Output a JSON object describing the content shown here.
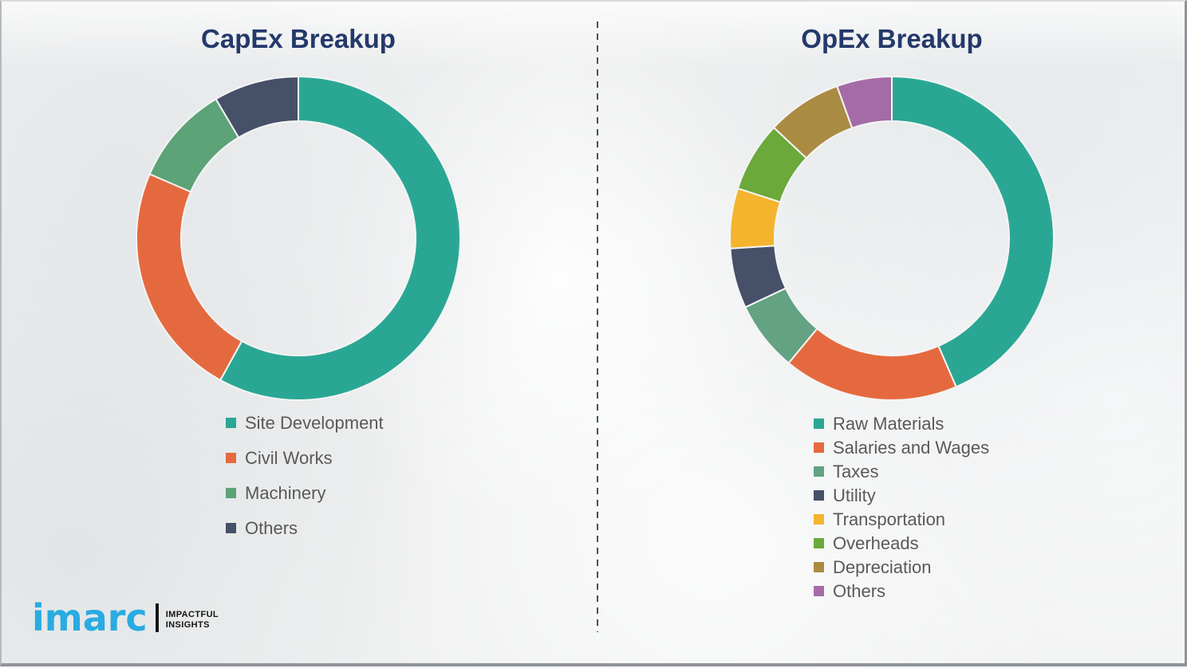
{
  "page": {
    "background_color": "#f0f1f1",
    "title_color": "#24396b",
    "legend_text_color": "#595959",
    "divider_color": "#4f4f4f"
  },
  "chart_data": [
    {
      "type": "pie",
      "subtype": "donut",
      "title": "CapEx Breakup",
      "categories": [
        "Site Development",
        "Civil Works",
        "Machinery",
        "Others"
      ],
      "values": [
        58,
        23.5,
        10,
        8.5
      ],
      "unit": "percent-estimated",
      "colors": [
        "#2aa794",
        "#e5693f",
        "#5ca377",
        "#475069"
      ],
      "start_angle_deg": 0,
      "direction": "clockwise",
      "legend_position": "below-left"
    },
    {
      "type": "pie",
      "subtype": "donut",
      "title": "OpEx Breakup",
      "categories": [
        "Raw Materials",
        "Salaries and Wages",
        "Taxes",
        "Utility",
        "Transportation",
        "Overheads",
        "Depreciation",
        "Others"
      ],
      "values": [
        43.5,
        17.5,
        7,
        6,
        6,
        7,
        7.5,
        5.5
      ],
      "unit": "percent-estimated",
      "colors": [
        "#2aa794",
        "#e5693f",
        "#63a282",
        "#475069",
        "#f5b42e",
        "#6aa93a",
        "#aa8b42",
        "#a56ba7"
      ],
      "start_angle_deg": 0,
      "direction": "clockwise",
      "legend_position": "below-left"
    }
  ],
  "logo": {
    "brand": "imarc",
    "tagline_line1": "IMPACTFUL",
    "tagline_line2": "INSIGHTS",
    "brand_color": "#29abe2",
    "tagline_color": "#151515"
  }
}
